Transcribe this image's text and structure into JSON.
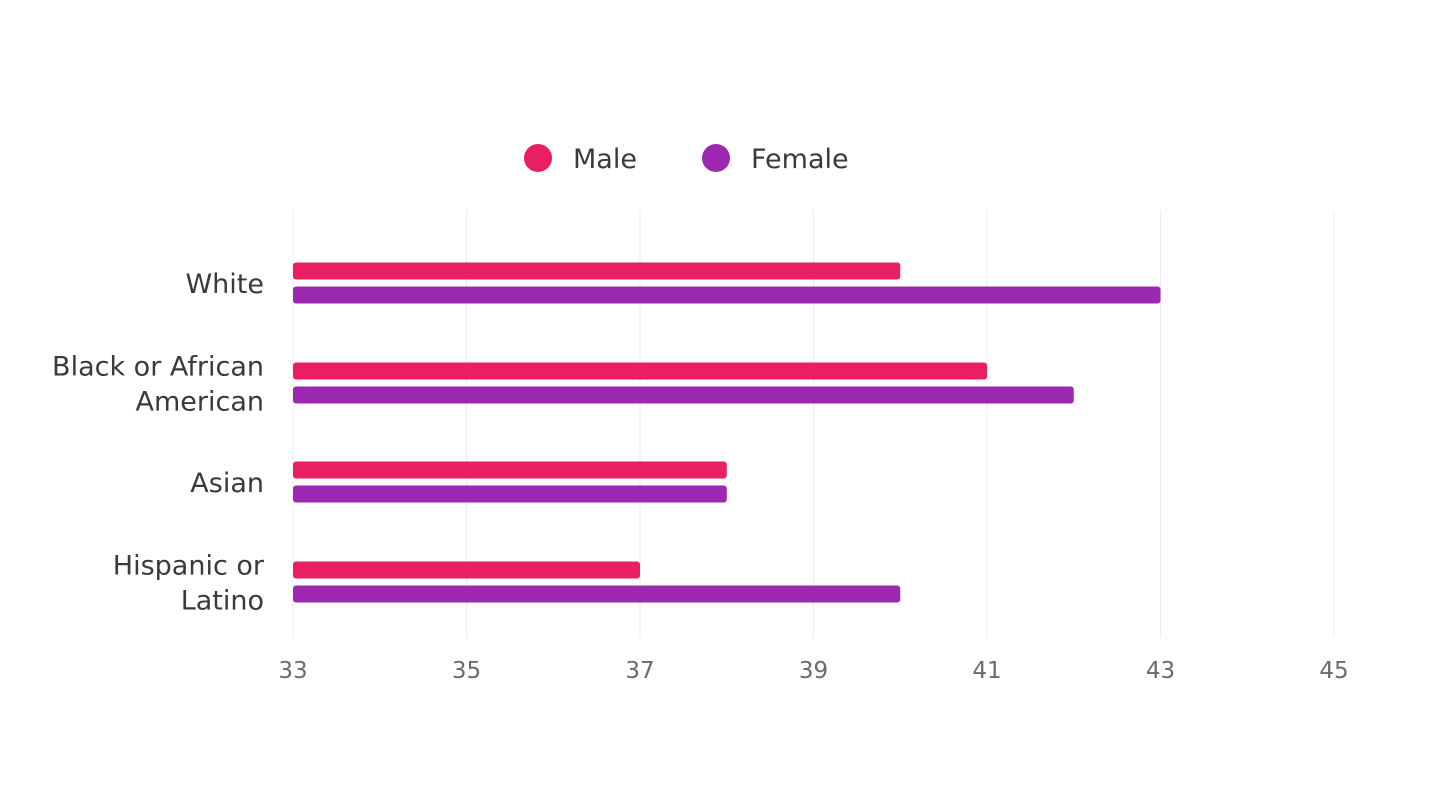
{
  "chart_data": {
    "type": "bar",
    "orientation": "horizontal",
    "categories": [
      "White",
      "Black or African American",
      "Asian",
      "Hispanic or Latino"
    ],
    "category_label_lines": [
      [
        "White"
      ],
      [
        "Black or African",
        "American"
      ],
      [
        "Asian"
      ],
      [
        "Hispanic or",
        "Latino"
      ]
    ],
    "series": [
      {
        "name": "Male",
        "color": "#e91e63",
        "values": [
          40,
          41,
          38,
          37
        ]
      },
      {
        "name": "Female",
        "color": "#9c27b0",
        "values": [
          43,
          42,
          38,
          40
        ]
      }
    ],
    "xlim": [
      33,
      45
    ],
    "xticks": [
      "33",
      "35",
      "37",
      "39",
      "41",
      "43",
      "45"
    ],
    "grid": "vertical",
    "legend": "top-center",
    "title": "",
    "xlabel": "",
    "ylabel": ""
  }
}
